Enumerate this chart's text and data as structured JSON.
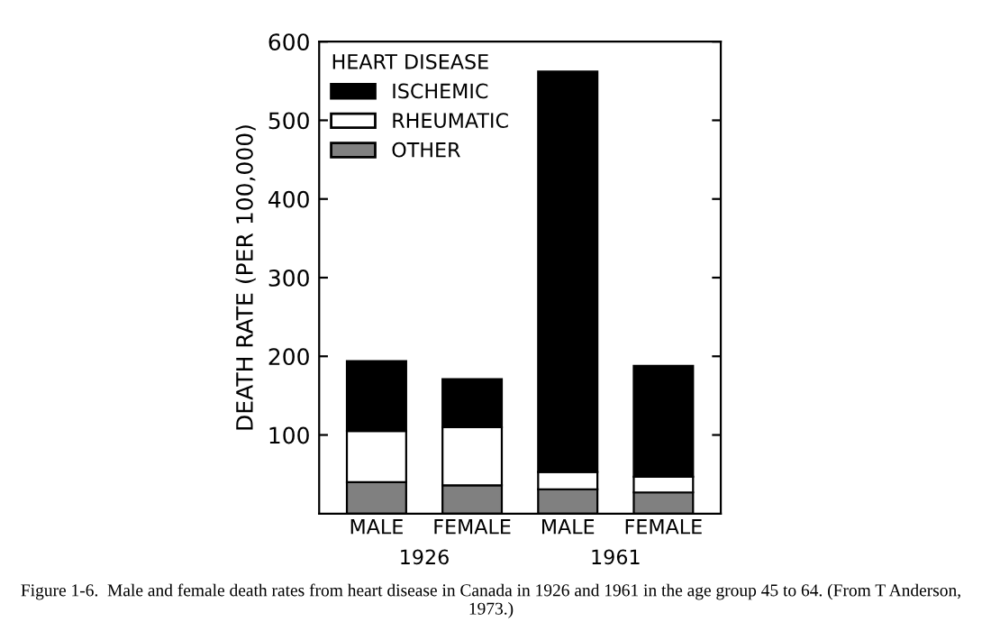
{
  "chart_data": {
    "type": "bar",
    "stacked": true,
    "categories": [
      "MALE",
      "FEMALE",
      "MALE",
      "FEMALE"
    ],
    "series": [
      {
        "name": "OTHER",
        "color": "#808080",
        "values": [
          40,
          36,
          31,
          27
        ]
      },
      {
        "name": "RHEUMATIC",
        "color": "#ffffff",
        "values": [
          65,
          74,
          22,
          20
        ]
      },
      {
        "name": "ISCHEMIC",
        "color": "#000000",
        "values": [
          89,
          61,
          509,
          141
        ]
      }
    ],
    "ylabel": "DEATH RATE (PER 100,000)",
    "legend_title": "HEART DISEASE",
    "legend": "top left",
    "ylim": [
      0,
      600
    ],
    "yticks": [
      100,
      200,
      300,
      400,
      500,
      600
    ],
    "grid": false,
    "annotations": [
      "1926",
      "1961",
      "Figure 1-6.  Male and female death rates from heart disease in Canada in 1926 and 1961 in the age group 45 to 64. (From T Anderson, 1973.)"
    ]
  }
}
